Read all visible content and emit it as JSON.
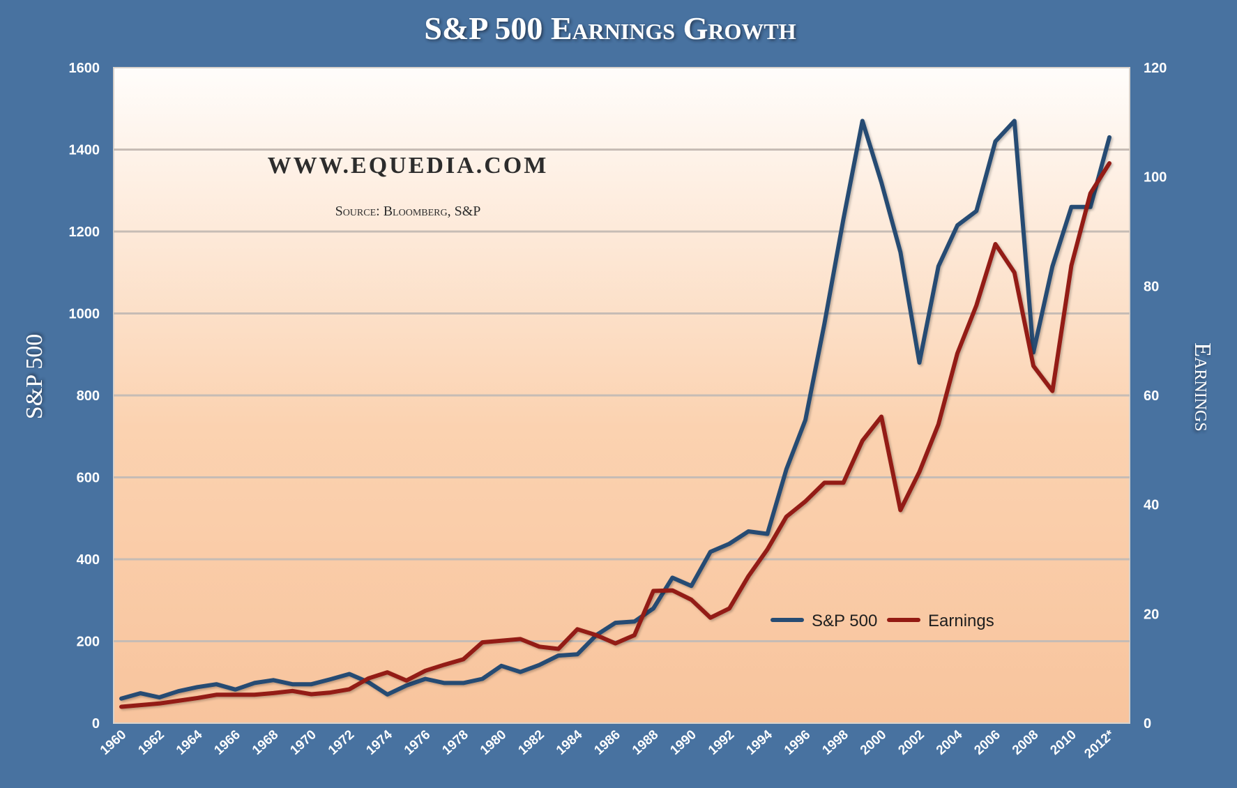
{
  "colors": {
    "background": "#4872a0",
    "plot_top": "#fffdfb",
    "plot_bottom": "#f8c49d",
    "gridline": "#c6bcb5",
    "sp500_line": "#274c73",
    "earnings_line": "#931a12",
    "text_light": "#ffffff"
  },
  "chart_data": {
    "type": "line",
    "title": "S&P 500 Earnings Growth",
    "watermark": "WWW.EQUEDIA.COM",
    "source": "Source: Bloomberg, S&P",
    "ylabel_left": "S&P 500",
    "ylabel_right": "Earnings",
    "ylim_left": [
      0,
      1600
    ],
    "ylim_right": [
      0,
      120
    ],
    "left_ticks": [
      "0",
      "200",
      "400",
      "600",
      "800",
      "1000",
      "1200",
      "1400",
      "1600"
    ],
    "right_ticks": [
      "0",
      "20",
      "40",
      "60",
      "80",
      "100",
      "120"
    ],
    "x_tick_labels": [
      "1960",
      "1962",
      "1964",
      "1966",
      "1968",
      "1970",
      "1972",
      "1974",
      "1976",
      "1978",
      "1980",
      "1982",
      "1984",
      "1986",
      "1988",
      "1990",
      "1992",
      "1994",
      "1996",
      "1998",
      "2000",
      "2002",
      "2004",
      "2006",
      "2008",
      "2010",
      "2012*"
    ],
    "grid": true,
    "legend_position": "bottom-right",
    "x": [
      1960,
      1961,
      1962,
      1963,
      1964,
      1965,
      1966,
      1967,
      1968,
      1969,
      1970,
      1971,
      1972,
      1973,
      1974,
      1975,
      1976,
      1977,
      1978,
      1979,
      1980,
      1981,
      1982,
      1983,
      1984,
      1985,
      1986,
      1987,
      1988,
      1989,
      1990,
      1991,
      1992,
      1993,
      1994,
      1995,
      1996,
      1997,
      1998,
      1999,
      2000,
      2001,
      2002,
      2003,
      2004,
      2005,
      2006,
      2007,
      2008,
      2009,
      2010,
      2011,
      2012
    ],
    "series": [
      {
        "name": "S&P 500",
        "axis": "left",
        "values": [
          60,
          73,
          63,
          78,
          88,
          95,
          82,
          98,
          105,
          95,
          95,
          107,
          120,
          100,
          70,
          92,
          108,
          98,
          98,
          108,
          140,
          125,
          142,
          165,
          168,
          215,
          245,
          248,
          280,
          355,
          335,
          418,
          438,
          468,
          462,
          620,
          740,
          975,
          1230,
          1470,
          1320,
          1150,
          880,
          1115,
          1215,
          1250,
          1420,
          1470,
          905,
          1115,
          1260,
          1260,
          1430
        ]
      },
      {
        "name": "Earnings",
        "axis": "right",
        "values": [
          3.0,
          3.3,
          3.6,
          4.1,
          4.6,
          5.2,
          5.2,
          5.2,
          5.5,
          5.9,
          5.3,
          5.6,
          6.2,
          8.2,
          9.3,
          7.8,
          9.6,
          10.7,
          11.7,
          14.8,
          15.1,
          15.4,
          14.0,
          13.6,
          17.2,
          16.1,
          14.6,
          16.1,
          24.2,
          24.3,
          22.6,
          19.3,
          21.0,
          26.9,
          31.8,
          37.8,
          40.6,
          44.0,
          44.0,
          51.7,
          56.1,
          39.0,
          46.0,
          54.7,
          67.7,
          76.5,
          87.7,
          82.5,
          65.4,
          60.8,
          83.8,
          97.0,
          102.5
        ]
      }
    ]
  }
}
